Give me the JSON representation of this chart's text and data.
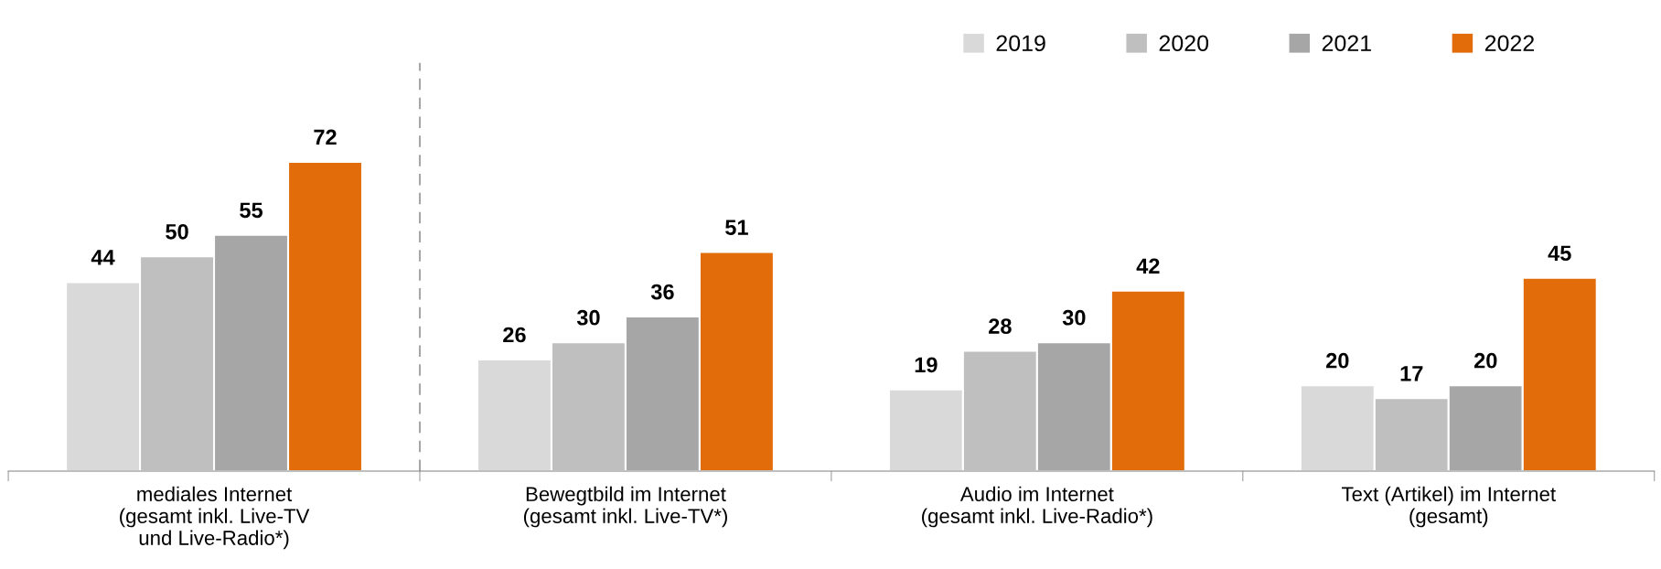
{
  "chart_data": {
    "type": "bar",
    "categories": [
      "mediales Internet\n(gesamt inkl. Live-TV\nund Live-Radio*)",
      "Bewegtbild im Internet\n(gesamt inkl. Live-TV*)",
      "Audio im Internet\n(gesamt inkl. Live-Radio*)",
      "Text (Artikel) im Internet\n(gesamt)"
    ],
    "series": [
      {
        "name": "2019",
        "color": "#d9d9d9",
        "values": [
          44,
          26,
          19,
          20
        ]
      },
      {
        "name": "2020",
        "color": "#bfbfbf",
        "values": [
          50,
          30,
          28,
          17
        ]
      },
      {
        "name": "2021",
        "color": "#a6a6a6",
        "values": [
          55,
          36,
          30,
          20
        ]
      },
      {
        "name": "2022",
        "color": "#e36c0a",
        "values": [
          72,
          51,
          42,
          45
        ]
      }
    ],
    "data_labels": true,
    "legend": "top right",
    "grid": false,
    "tick_labels": "x"
  }
}
